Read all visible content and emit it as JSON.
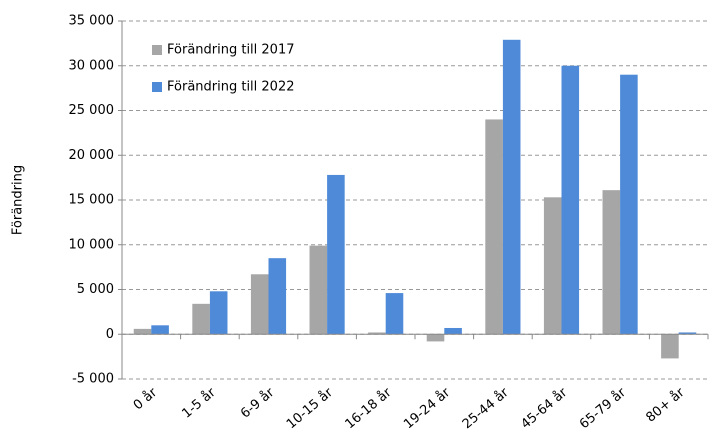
{
  "chart_data": {
    "type": "bar",
    "y_label": "Förändring",
    "categories": [
      "0 år",
      "1-5 år",
      "6-9 år",
      "10-15 år",
      "16-18 år",
      "19-24 år",
      "25-44 år",
      "45-64 år",
      "65-79 år",
      "80+ år"
    ],
    "series": [
      {
        "name": "Förändring till 2017",
        "color": "#a6a6a6",
        "values": [
          600,
          3400,
          6700,
          9900,
          200,
          -800,
          24000,
          15300,
          16100,
          -2700
        ]
      },
      {
        "name": "Förändring till 2022",
        "color": "#4f8ad8",
        "values": [
          1000,
          4800,
          8500,
          17800,
          4600,
          700,
          32900,
          30000,
          29000,
          200
        ]
      }
    ],
    "ylim": [
      -5000,
      35000
    ],
    "yticks": [
      {
        "value": -5000,
        "label": "-5 000"
      },
      0,
      {
        "value": 5000,
        "label": "5 000"
      },
      {
        "value": 10000,
        "label": "10 000"
      },
      {
        "value": 15000,
        "label": "15 000"
      },
      {
        "value": 20000,
        "label": "20 000"
      },
      {
        "value": 25000,
        "label": "25 000"
      },
      {
        "value": 30000,
        "label": "30 000"
      },
      {
        "value": 35000,
        "label": "35 000"
      }
    ],
    "grid": true,
    "legend": "top-left"
  }
}
